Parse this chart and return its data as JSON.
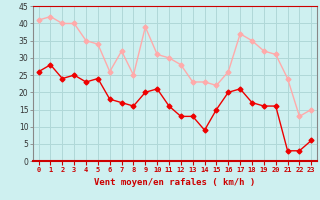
{
  "xlabel": "Vent moyen/en rafales ( km/h )",
  "background_color": "#cef0f0",
  "grid_color": "#b0d8d8",
  "x_labels": [
    "0",
    "1",
    "2",
    "3",
    "4",
    "5",
    "6",
    "7",
    "8",
    "9",
    "10",
    "11",
    "12",
    "13",
    "14",
    "15",
    "16",
    "17",
    "18",
    "19",
    "20",
    "21",
    "22",
    "23"
  ],
  "ylim": [
    0,
    45
  ],
  "yticks": [
    0,
    5,
    10,
    15,
    20,
    25,
    30,
    35,
    40,
    45
  ],
  "mean_wind": [
    26,
    28,
    24,
    25,
    23,
    24,
    18,
    17,
    16,
    20,
    21,
    16,
    13,
    13,
    9,
    15,
    20,
    21,
    17,
    16,
    16,
    3,
    3,
    6
  ],
  "gust_wind": [
    41,
    42,
    40,
    40,
    35,
    34,
    26,
    32,
    25,
    39,
    31,
    30,
    28,
    23,
    23,
    22,
    26,
    37,
    35,
    32,
    31,
    24,
    13,
    15
  ],
  "mean_color": "#ee0000",
  "gust_color": "#ffaaaa",
  "line_width": 1.0,
  "marker_size": 2.5
}
